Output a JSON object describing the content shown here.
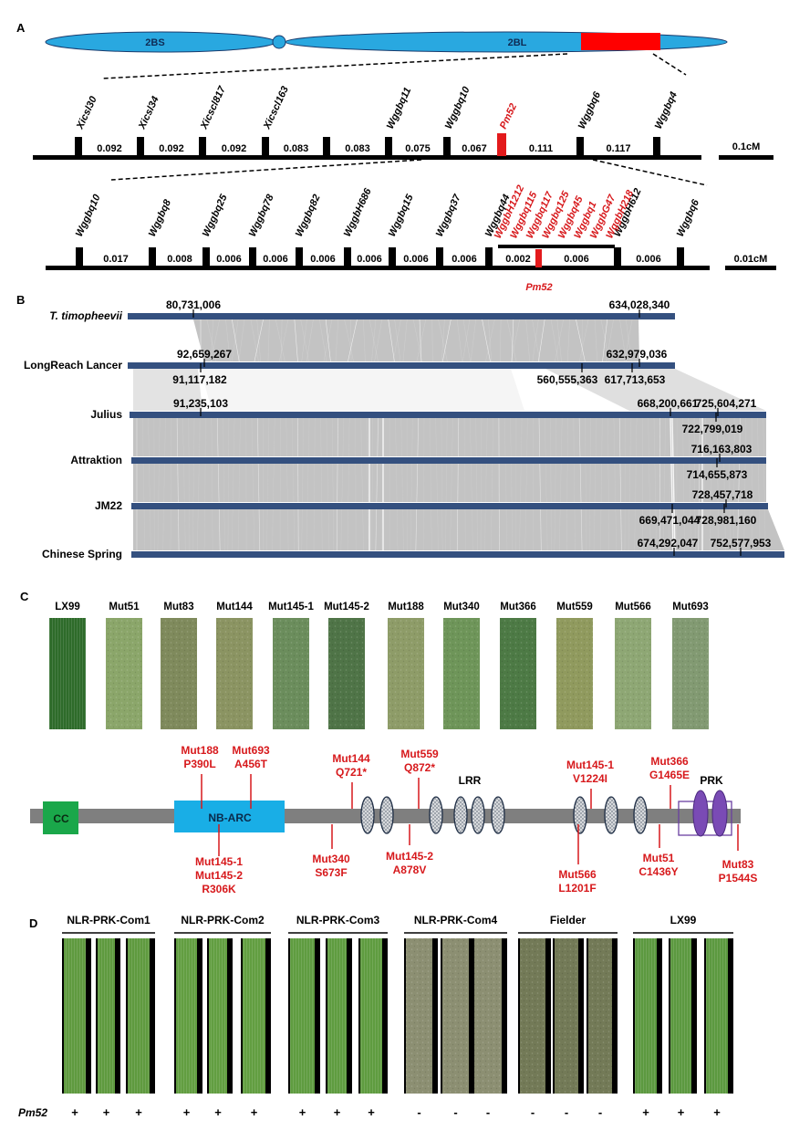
{
  "figure": {
    "panels": [
      "A",
      "B",
      "C",
      "D"
    ]
  },
  "panelA": {
    "chromosome": {
      "short_arm": "2BS",
      "long_arm": "2BL",
      "arm_color": "#29a8e0",
      "highlight_color": "#ff0000"
    },
    "map1": {
      "markers": [
        {
          "name": "Xicsl30",
          "highlight": false
        },
        {
          "name": "Xicsl34",
          "highlight": false
        },
        {
          "name": "Xicscl817",
          "highlight": false
        },
        {
          "name": "Xicscl163",
          "highlight": false
        },
        {
          "name": "",
          "highlight": false
        },
        {
          "name": "Wggbq11",
          "highlight": false
        },
        {
          "name": "Wggbq10",
          "highlight": false
        },
        {
          "name": "Pm52",
          "highlight": true
        },
        {
          "name": "Wggbq6",
          "highlight": false
        },
        {
          "name": "Wggbq4",
          "highlight": false
        }
      ],
      "intervals": [
        "0.092",
        "0.092",
        "0.092",
        "0.083",
        "0.083",
        "0.075",
        "0.067",
        "0.111",
        "0.117"
      ],
      "scale": "0.1cM"
    },
    "map2": {
      "markers": [
        {
          "name": "Wggbq10",
          "highlight": false
        },
        {
          "name": "Wggbq8",
          "highlight": false
        },
        {
          "name": "Wggbq25",
          "highlight": false
        },
        {
          "name": "Wggbq78",
          "highlight": false
        },
        {
          "name": "Wggbq82",
          "highlight": false
        },
        {
          "name": "WggbH686",
          "highlight": false
        },
        {
          "name": "Wggbq15",
          "highlight": false
        },
        {
          "name": "Wggbq37",
          "highlight": false
        },
        {
          "name": "Wggbq44",
          "highlight": false
        },
        {
          "name": "WggbH612",
          "highlight": false
        },
        {
          "name": "Wggbq6",
          "highlight": false
        }
      ],
      "cosegregating_markers": [
        "WggbH1212",
        "Wggbq115",
        "Wggbq117",
        "Wggbq125",
        "Wggbq45",
        "Wggbq1",
        "WggbG47",
        "WggbH218"
      ],
      "intervals": [
        "0.017",
        "0.008",
        "0.006",
        "0.006",
        "0.006",
        "0.006",
        "0.006",
        "0.006",
        "0.002",
        "0.006",
        "0.006"
      ],
      "gene_label": "Pm52",
      "scale": "0.01cM"
    }
  },
  "panelB": {
    "genomes": [
      {
        "name": "T. timopheevii",
        "italic": true,
        "above": [
          "80,731,006",
          "634,028,340"
        ],
        "below": []
      },
      {
        "name": "LongReach Lancer",
        "italic": false,
        "above": [
          "92,659,267",
          "632,979,036"
        ],
        "below": [
          "91,117,182",
          "560,555,363",
          "617,713,653"
        ]
      },
      {
        "name": "Julius",
        "italic": false,
        "above": [
          "91,235,103",
          "668,200,661",
          "725,604,271"
        ],
        "below": [
          "722,799,019"
        ]
      },
      {
        "name": "Attraktion",
        "italic": false,
        "above": [
          "716,163,803"
        ],
        "below": [
          "714,655,873"
        ]
      },
      {
        "name": "JM22",
        "italic": false,
        "above": [
          "728,457,718"
        ],
        "below": [
          "669,471,044",
          "728,981,160"
        ]
      },
      {
        "name": "Chinese Spring",
        "italic": false,
        "above": [
          "674,292,047",
          "752,577,953"
        ],
        "below": []
      }
    ],
    "bar_color": "#34507f",
    "synteny_color": "#b9b9b9"
  },
  "panelC": {
    "lines": [
      "LX99",
      "Mut51",
      "Mut83",
      "Mut144",
      "Mut145-1",
      "Mut145-2",
      "Mut188",
      "Mut340",
      "Mut366",
      "Mut559",
      "Mut566",
      "Mut693"
    ],
    "leaf_colors": [
      "#2e6b2a",
      "#8ba66a",
      "#7f8a5c",
      "#8b9462",
      "#6b8d5c",
      "#4f7447",
      "#8e9c68",
      "#6e9559",
      "#4d7a45",
      "#909a5e",
      "#8ea774",
      "#829a72"
    ],
    "domains": {
      "cc": "CC",
      "nbarc": "NB-ARC",
      "lrr": "LRR",
      "prk": "PRK"
    },
    "mutations_above": [
      {
        "line": "Mut188",
        "change": "P390L"
      },
      {
        "line": "Mut693",
        "change": "A456T"
      },
      {
        "line": "Mut144",
        "change": "Q721*"
      },
      {
        "line": "Mut559",
        "change": "Q872*"
      },
      {
        "line": "Mut145-1",
        "change": "V1224I"
      },
      {
        "line": "Mut366",
        "change": "G1465E"
      }
    ],
    "mutations_below": [
      {
        "line": "Mut145-1\nMut145-2",
        "change": "R306K"
      },
      {
        "line": "Mut340",
        "change": "S673F"
      },
      {
        "line": "Mut145-2",
        "change": "A878V"
      },
      {
        "line": "Mut566",
        "change": "L1201F"
      },
      {
        "line": "Mut51",
        "change": "C1436Y"
      },
      {
        "line": "Mut83",
        "change": "P1544S"
      }
    ],
    "colors": {
      "cc": "#1aa74a",
      "nbarc": "#19aee6",
      "lrr": "#9aa0a8",
      "prk": "#7a4bb5",
      "mutation": "#d7191c",
      "backbone": "#7f7f7f"
    }
  },
  "panelD": {
    "groups": [
      {
        "name": "NLR-PRK-Com1",
        "pm52": [
          "+",
          "+",
          "+"
        ],
        "leaf": "#5f9a3f"
      },
      {
        "name": "NLR-PRK-Com2",
        "pm52": [
          "+",
          "+",
          "+"
        ],
        "leaf": "#629e41"
      },
      {
        "name": "NLR-PRK-Com3",
        "pm52": [
          "+",
          "+",
          "+"
        ],
        "leaf": "#5f9c40"
      },
      {
        "name": "NLR-PRK-Com4",
        "pm52": [
          "-",
          "-",
          "-"
        ],
        "leaf": "#8c8f72"
      },
      {
        "name": "Fielder",
        "pm52": [
          "-",
          "-",
          "-"
        ],
        "leaf": "#737a57"
      },
      {
        "name": "LX99",
        "pm52": [
          "+",
          "+",
          "+"
        ],
        "leaf": "#5c9940"
      }
    ],
    "row_label": "Pm52"
  }
}
